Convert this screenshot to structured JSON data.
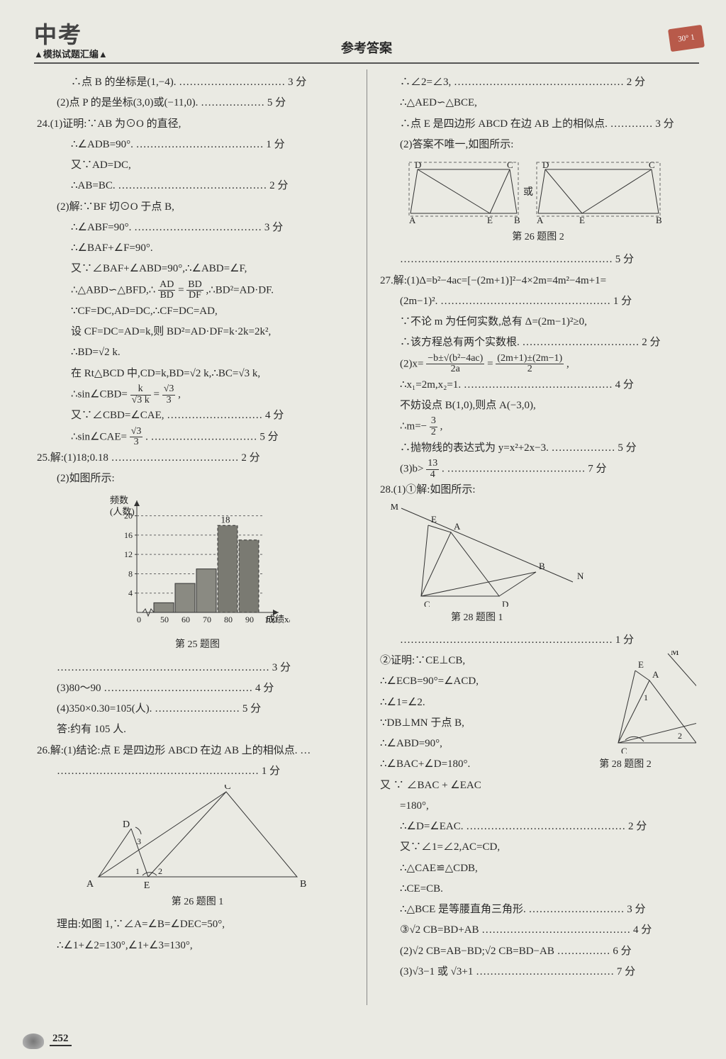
{
  "header": {
    "logo_main": "中考",
    "logo_sub": "▲模拟试题汇编▲",
    "title": "参考答案",
    "badge": "30° 1"
  },
  "page_number": "252",
  "left": {
    "l01": "∴点 B 的坐标是(1,−4). ………………………… 3 分",
    "l02": "(2)点 P 的是坐标(3,0)或(−11,0). ……………… 5 分",
    "l03": "24.(1)证明:∵AB 为⊙O 的直径,",
    "l04": "∴∠ADB=90°. ……………………………… 1 分",
    "l05": "又∵AD=DC,",
    "l06": "∴AB=BC. …………………………………… 2 分",
    "l07": "(2)解:∵BF 切⊙O 于点 B,",
    "l08": "∴∠ABF=90°. ……………………………… 3 分",
    "l09": "∴∠BAF+∠F=90°.",
    "l10": "又∵∠BAF+∠ABD=90°,∴∠ABD=∠F,",
    "l11a": "∴△ABD∽△BFD,∴",
    "l11f1t": "AD",
    "l11f1b": "BD",
    "l11m": "=",
    "l11f2t": "BD",
    "l11f2b": "DF",
    "l11b": ",∴BD²=AD·DF.",
    "l12": "∵CF=DC,AD=DC,∴CF=DC=AD,",
    "l13": "设 CF=DC=AD=k,则 BD²=AD·DF=k·2k=2k²,",
    "l14": "∴BD=√2 k.",
    "l15": "在 Rt△BCD 中,CD=k,BD=√2 k,∴BC=√3 k,",
    "l16a": "∴sin∠CBD=",
    "l16f1t": "k",
    "l16f1b": "√3 k",
    "l16m": "=",
    "l16f2t": "√3",
    "l16f2b": "3",
    "l16b": ",",
    "l17": "又∵∠CBD=∠CAE,  ……………………… 4 分",
    "l18a": "∴sin∠CAE=",
    "l18ft": "√3",
    "l18fb": "3",
    "l18b": ". ………………………… 5 分",
    "l19": "25.解:(1)18;0.18  ……………………………… 2 分",
    "l20": "(2)如图所示:",
    "chart25": {
      "type": "bar",
      "ylabel": "频数\n(人数)",
      "xlabel": "成绩x/分",
      "xticks": [
        "0",
        "50",
        "60",
        "70",
        "80",
        "90",
        "100"
      ],
      "yticks": [
        4,
        8,
        12,
        16,
        20
      ],
      "values": [
        2,
        6,
        9,
        18,
        15
      ],
      "value_label": "18",
      "bar_fill": "#8a8a82",
      "bar_last_fill": "#7a7a72",
      "dashed_color": "#666",
      "axis_color": "#333",
      "ylim": [
        0,
        22
      ],
      "bg": "#eaeae3"
    },
    "cap25": "第 25 题图",
    "l21": "…………………………………………………… 3 分",
    "l22": "(3)80～90 …………………………………… 4 分",
    "l23": "(4)350×0.30=105(人). …………………… 5 分",
    "l24": "答:约有 105 人.",
    "l25": "26.解:(1)结论:点 E 是四边形 ABCD 在边 AB 上的相似点. …",
    "l26": "………………………………………………… 1 分",
    "fig26_1": {
      "A": [
        20,
        130
      ],
      "B": [
        300,
        130
      ],
      "C": [
        200,
        10
      ],
      "D": [
        66,
        62
      ],
      "E": [
        90,
        130
      ],
      "lbl_1": "1",
      "lbl_2": "2",
      "lbl_3": "3",
      "stroke": "#333"
    },
    "cap26_1": "第 26 题图 1",
    "l27": "理由:如图 1,∵∠A=∠B=∠DEC=50°,",
    "l28": "∴∠1+∠2=130°,∠1+∠3=130°,"
  },
  "right": {
    "r01": "∴∠2=∠3, ………………………………………… 2 分",
    "r02": "∴△AED∽△BCE,",
    "r03": "∴点 E 是四边形 ABCD 在边 AB 上的相似点. ………… 3 分",
    "r04": "(2)答案不唯一,如图所示:",
    "fig26_2": {
      "stroke": "#333",
      "dash": "#666",
      "left": {
        "A": [
          10,
          78
        ],
        "B": [
          160,
          78
        ],
        "E": [
          122,
          78
        ],
        "D": [
          20,
          16
        ],
        "C": [
          150,
          16
        ]
      },
      "right": {
        "A": [
          190,
          78
        ],
        "B": [
          360,
          78
        ],
        "E": [
          252,
          78
        ],
        "D": [
          200,
          16
        ],
        "C": [
          350,
          16
        ]
      },
      "or": "或"
    },
    "cap26_2": "第 26 题图 2",
    "r05": "…………………………………………………… 5 分",
    "r06": "27.解:(1)Δ=b²−4ac=[−(2m+1)]²−4×2m=4m²−4m+1=",
    "r07": "(2m−1)². ………………………………………… 1 分",
    "r08": "∵不论 m 为任何实数,总有 Δ=(2m−1)²≥0,",
    "r09": "∴该方程总有两个实数根. …………………………… 2 分",
    "r10a": "(2)x=",
    "r10f1t": "−b±√(b²−4ac)",
    "r10f1b": "2a",
    "r10m": "=",
    "r10f2t": "(2m+1)±(2m−1)",
    "r10f2b": "2",
    "r10b": ",",
    "r11": "∴x₁=2m,x₂=1. …………………………………… 4 分",
    "r12": "不妨设点 B(1,0),则点 A(−3,0),",
    "r13a": "∴m=−",
    "r13ft": "3",
    "r13fb": "2",
    "r13b": ",",
    "r14": "∴抛物线的表达式为 y=x²+2x−3. ……………… 5 分",
    "r15a": "(3)b>",
    "r15ft": "13",
    "r15fb": "4",
    "r15b": ". ………………………………… 7 分",
    "r16": "28.(1)①解:如图所示:",
    "fig28_1": {
      "stroke": "#333",
      "M": [
        20,
        6
      ],
      "E": [
        58,
        30
      ],
      "A": [
        90,
        40
      ],
      "B": [
        210,
        96
      ],
      "N": [
        262,
        110
      ],
      "C": [
        48,
        130
      ],
      "D": [
        158,
        130
      ]
    },
    "cap28_1": "第 28 题图 1",
    "r17": "…………………………………………………… 1 分",
    "r18": "②证明:∵CE⊥CB,",
    "r19": "∴∠ECB=90°=∠ACD,",
    "r20": "∴∠1=∠2.",
    "r21": "∵DB⊥MN 于点 B,",
    "r22": "∴∠ABD=90°,",
    "r23": "∴∠BAC+∠D=180°.",
    "r24": "又 ∵ ∠BAC + ∠EAC",
    "fig28_2": {
      "stroke": "#333",
      "M": [
        160,
        4
      ],
      "E": [
        114,
        28
      ],
      "A": [
        134,
        42
      ],
      "B": [
        218,
        98
      ],
      "N": [
        250,
        106
      ],
      "C": [
        90,
        130
      ],
      "D": [
        200,
        130
      ],
      "lbl_1": "1",
      "lbl_2": "2"
    },
    "cap28_2": "第 28 题图 2",
    "r25": "=180°,",
    "r26": "∴∠D=∠EAC. ……………………………………… 2 分",
    "r27": "又∵∠1=∠2,AC=CD,",
    "r28": "∴△CAE≌△CDB,",
    "r29": "∴CE=CB.",
    "r30": "∴△BCE 是等腰直角三角形. ……………………… 3 分",
    "r31": "③√2 CB=BD+AB  …………………………………… 4 分",
    "r32": "(2)√2 CB=AB−BD;√2 CB=BD−AB …………… 6 分",
    "r33": "(3)√3−1 或 √3+1 ………………………………… 7 分"
  }
}
